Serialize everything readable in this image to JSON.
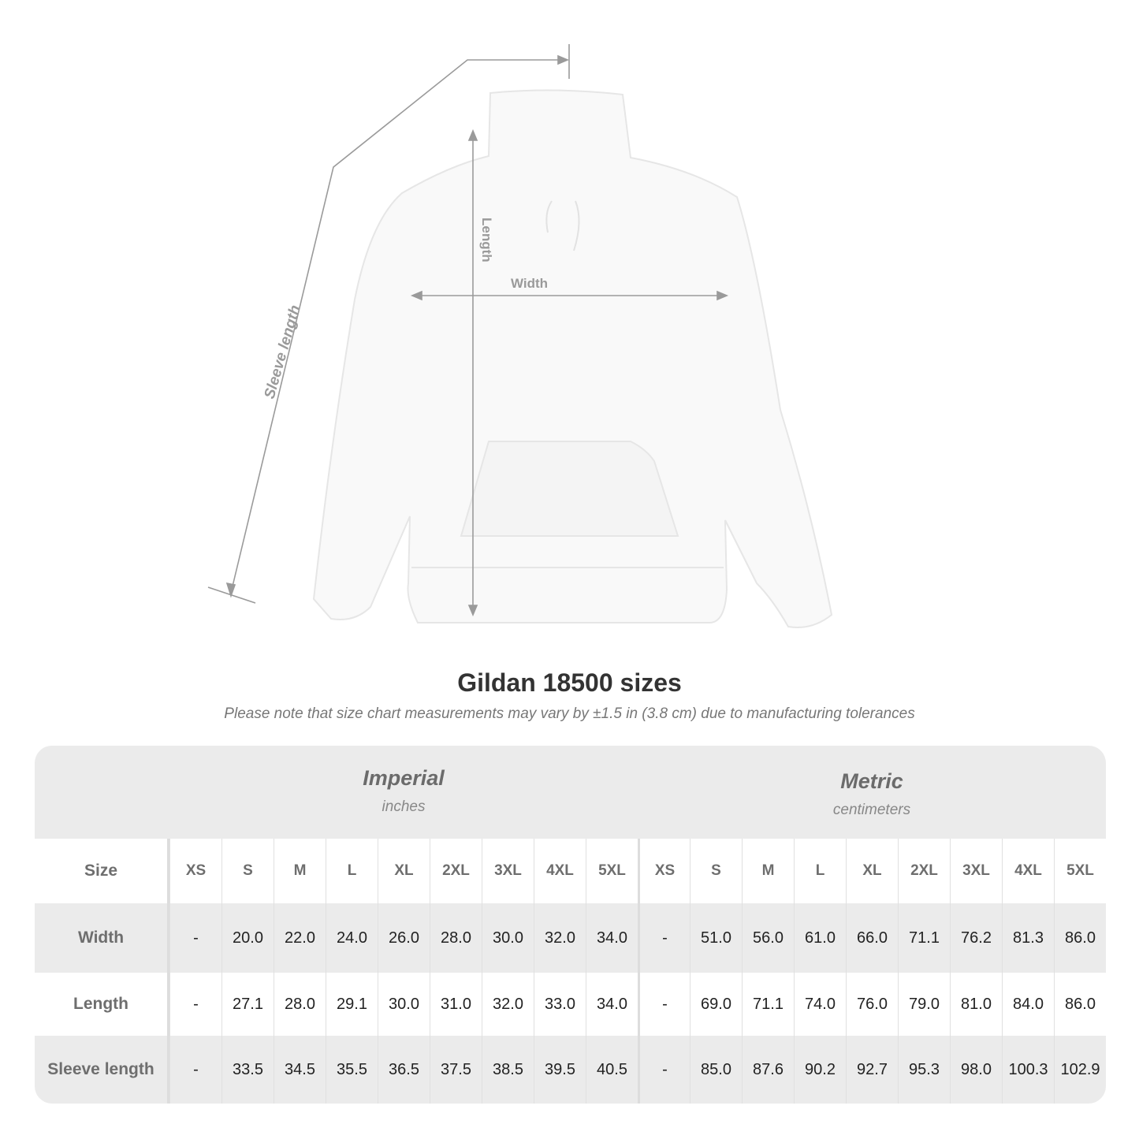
{
  "diagram": {
    "labels": {
      "sleeve": "Sleeve length",
      "length": "Length",
      "width": "Width"
    }
  },
  "title": "Gildan 18500 sizes",
  "note": "Please note that size chart measurements may vary by ±1.5 in (3.8 cm) due to manufacturing tolerances",
  "groups": [
    {
      "name": "Imperial",
      "unit": "inches"
    },
    {
      "name": "Metric",
      "unit": "centimeters"
    }
  ],
  "size_label": "Size",
  "sizes": [
    "XS",
    "S",
    "M",
    "L",
    "XL",
    "2XL",
    "3XL",
    "4XL",
    "5XL"
  ],
  "rows": [
    {
      "label": "Width",
      "imperial": [
        "-",
        "20.0",
        "22.0",
        "24.0",
        "26.0",
        "28.0",
        "30.0",
        "32.0",
        "34.0"
      ],
      "metric": [
        "-",
        "51.0",
        "56.0",
        "61.0",
        "66.0",
        "71.1",
        "76.2",
        "81.3",
        "86.0"
      ]
    },
    {
      "label": "Length",
      "imperial": [
        "-",
        "27.1",
        "28.0",
        "29.1",
        "30.0",
        "31.0",
        "32.0",
        "33.0",
        "34.0"
      ],
      "metric": [
        "-",
        "69.0",
        "71.1",
        "74.0",
        "76.0",
        "79.0",
        "81.0",
        "84.0",
        "86.0"
      ]
    },
    {
      "label": "Sleeve length",
      "imperial": [
        "-",
        "33.5",
        "34.5",
        "35.5",
        "36.5",
        "37.5",
        "38.5",
        "39.5",
        "40.5"
      ],
      "metric": [
        "-",
        "85.0",
        "87.6",
        "90.2",
        "92.7",
        "95.3",
        "98.0",
        "100.3",
        "102.9"
      ]
    }
  ],
  "colors": {
    "header_bg": "#ebebeb",
    "label_text": "#6e6e6e",
    "measure_line": "#9a9a9a"
  }
}
